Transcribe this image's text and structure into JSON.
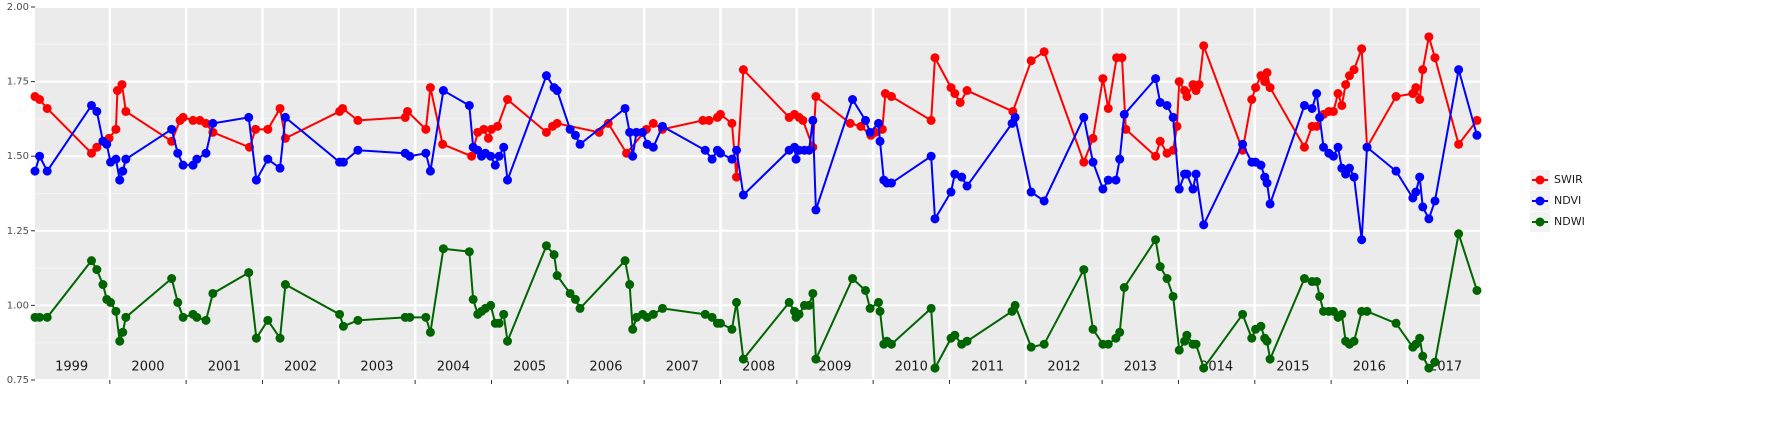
{
  "chart_data": {
    "type": "line",
    "series": [
      {
        "name": "SWIR",
        "color": "#ff0000",
        "x": [
          1999.02,
          1999.08,
          1999.18,
          1999.76,
          1999.83,
          1999.91,
          1999.99,
          2000.08,
          2000.1,
          2000.16,
          2000.21,
          2000.81,
          2000.92,
          2000.96,
          2001.09,
          2001.18,
          2001.26,
          2001.35,
          2001.83,
          2001.91,
          2002.07,
          2002.23,
          2002.3,
          2003.01,
          2003.05,
          2003.25,
          2003.87,
          2003.9,
          2004.14,
          2004.2,
          2004.36,
          2004.74,
          2004.82,
          2004.9,
          2004.96,
          2005.0,
          2005.08,
          2005.21,
          2005.72,
          2005.8,
          2005.86,
          2006.41,
          2006.53,
          2006.77,
          2007.03,
          2007.12,
          2007.24,
          2007.77,
          2007.85,
          2007.96,
          2008.0,
          2008.15,
          2008.21,
          2008.3,
          2008.9,
          2008.97,
          2009.03,
          2009.08,
          2009.21,
          2009.25,
          2009.7,
          2009.84,
          2009.97,
          2010.03,
          2010.12,
          2010.16,
          2010.24,
          2010.76,
          2010.81,
          2011.02,
          2011.07,
          2011.14,
          2011.23,
          2011.83,
          2012.07,
          2012.24,
          2012.76,
          2012.88,
          2013.01,
          2013.08,
          2013.19,
          2013.26,
          2013.31,
          2013.7,
          2013.76,
          2013.85,
          2013.93,
          2013.98,
          2014.01,
          2014.08,
          2014.11,
          2014.19,
          2014.23,
          2014.27,
          2014.33,
          2014.84,
          2014.96,
          2015.01,
          2015.08,
          2015.13,
          2015.16,
          2015.2,
          2015.65,
          2015.75,
          2015.81,
          2015.85,
          2015.9,
          2015.97,
          2016.03,
          2016.09,
          2016.14,
          2016.19,
          2016.24,
          2016.3,
          2016.4,
          2016.47,
          2016.85,
          2017.07,
          2017.11,
          2017.16,
          2017.2,
          2017.28,
          2017.36,
          2017.67,
          2017.91
        ],
        "values": [
          1.7,
          1.69,
          1.66,
          1.51,
          1.53,
          1.55,
          1.56,
          1.59,
          1.72,
          1.74,
          1.65,
          1.55,
          1.62,
          1.63,
          1.62,
          1.62,
          1.61,
          1.58,
          1.53,
          1.59,
          1.59,
          1.66,
          1.56,
          1.65,
          1.66,
          1.62,
          1.63,
          1.65,
          1.59,
          1.73,
          1.54,
          1.5,
          1.58,
          1.59,
          1.56,
          1.59,
          1.6,
          1.69,
          1.58,
          1.6,
          1.61,
          1.58,
          1.61,
          1.51,
          1.59,
          1.61,
          1.59,
          1.62,
          1.62,
          1.63,
          1.64,
          1.61,
          1.43,
          1.79,
          1.63,
          1.64,
          1.63,
          1.62,
          1.53,
          1.7,
          1.61,
          1.6,
          1.57,
          1.58,
          1.59,
          1.71,
          1.7,
          1.62,
          1.83,
          1.73,
          1.71,
          1.68,
          1.72,
          1.65,
          1.82,
          1.85,
          1.48,
          1.56,
          1.76,
          1.66,
          1.83,
          1.83,
          1.59,
          1.5,
          1.55,
          1.51,
          1.52,
          1.6,
          1.75,
          1.72,
          1.7,
          1.74,
          1.72,
          1.74,
          1.87,
          1.52,
          1.69,
          1.73,
          1.77,
          1.75,
          1.78,
          1.73,
          1.53,
          1.6,
          1.6,
          1.63,
          1.64,
          1.65,
          1.65,
          1.71,
          1.67,
          1.74,
          1.77,
          1.79,
          1.86,
          1.53,
          1.7,
          1.71,
          1.73,
          1.69,
          1.79,
          1.9,
          1.83,
          1.54,
          1.62
        ]
      },
      {
        "name": "NDVI",
        "color": "#0000ff",
        "x": [
          1999.02,
          1999.08,
          1999.18,
          1999.76,
          1999.83,
          1999.91,
          1999.96,
          2000.01,
          2000.08,
          2000.13,
          2000.17,
          2000.21,
          2000.81,
          2000.89,
          2000.96,
          2001.09,
          2001.14,
          2001.26,
          2001.35,
          2001.82,
          2001.92,
          2002.07,
          2002.23,
          2002.3,
          2003.01,
          2003.06,
          2003.25,
          2003.87,
          2003.93,
          2004.14,
          2004.2,
          2004.37,
          2004.71,
          2004.76,
          2004.82,
          2004.87,
          2004.92,
          2004.99,
          2005.05,
          2005.1,
          2005.16,
          2005.21,
          2005.72,
          2005.82,
          2005.86,
          2006.03,
          2006.1,
          2006.16,
          2006.75,
          2006.81,
          2006.85,
          2006.9,
          2006.98,
          2007.04,
          2007.12,
          2007.24,
          2007.8,
          2007.89,
          2007.96,
          2008.0,
          2008.15,
          2008.21,
          2008.3,
          2008.9,
          2008.97,
          2008.99,
          2009.03,
          2009.1,
          2009.16,
          2009.21,
          2009.25,
          2009.73,
          2009.9,
          2009.96,
          2010.07,
          2010.09,
          2010.14,
          2010.18,
          2010.24,
          2010.76,
          2010.81,
          2011.02,
          2011.07,
          2011.16,
          2011.23,
          2011.82,
          2011.86,
          2012.07,
          2012.24,
          2012.76,
          2012.88,
          2013.01,
          2013.08,
          2013.18,
          2013.23,
          2013.29,
          2013.7,
          2013.76,
          2013.85,
          2013.93,
          2014.01,
          2014.08,
          2014.11,
          2014.19,
          2014.23,
          2014.33,
          2014.84,
          2014.96,
          2015.01,
          2015.08,
          2015.13,
          2015.16,
          2015.2,
          2015.65,
          2015.75,
          2015.81,
          2015.85,
          2015.9,
          2015.97,
          2016.03,
          2016.09,
          2016.14,
          2016.19,
          2016.24,
          2016.3,
          2016.4,
          2016.47,
          2016.85,
          2017.07,
          2017.11,
          2017.16,
          2017.2,
          2017.28,
          2017.36,
          2017.67,
          2017.91
        ],
        "values": [
          1.45,
          1.5,
          1.45,
          1.67,
          1.65,
          1.55,
          1.54,
          1.48,
          1.49,
          1.42,
          1.45,
          1.49,
          1.59,
          1.51,
          1.47,
          1.47,
          1.49,
          1.51,
          1.61,
          1.63,
          1.42,
          1.49,
          1.46,
          1.63,
          1.48,
          1.48,
          1.52,
          1.51,
          1.5,
          1.51,
          1.45,
          1.72,
          1.67,
          1.53,
          1.52,
          1.5,
          1.51,
          1.5,
          1.47,
          1.5,
          1.53,
          1.42,
          1.77,
          1.73,
          1.72,
          1.59,
          1.57,
          1.54,
          1.66,
          1.58,
          1.5,
          1.58,
          1.58,
          1.54,
          1.53,
          1.6,
          1.52,
          1.49,
          1.52,
          1.51,
          1.49,
          1.52,
          1.37,
          1.52,
          1.53,
          1.49,
          1.52,
          1.52,
          1.52,
          1.62,
          1.32,
          1.69,
          1.62,
          1.58,
          1.61,
          1.55,
          1.42,
          1.41,
          1.41,
          1.5,
          1.29,
          1.38,
          1.44,
          1.43,
          1.4,
          1.61,
          1.63,
          1.38,
          1.35,
          1.63,
          1.48,
          1.39,
          1.42,
          1.42,
          1.49,
          1.64,
          1.76,
          1.68,
          1.67,
          1.63,
          1.39,
          1.44,
          1.44,
          1.39,
          1.44,
          1.27,
          1.54,
          1.48,
          1.48,
          1.47,
          1.43,
          1.41,
          1.34,
          1.67,
          1.66,
          1.71,
          1.63,
          1.53,
          1.51,
          1.5,
          1.53,
          1.46,
          1.44,
          1.46,
          1.43,
          1.22,
          1.53,
          1.45,
          1.36,
          1.38,
          1.43,
          1.33,
          1.29,
          1.35,
          1.79,
          1.57
        ]
      },
      {
        "name": "NDWI",
        "color": "#006400",
        "x": [
          1999.02,
          1999.08,
          1999.18,
          1999.76,
          1999.83,
          1999.91,
          1999.96,
          2000.01,
          2000.08,
          2000.13,
          2000.17,
          2000.21,
          2000.81,
          2000.89,
          2000.96,
          2001.09,
          2001.14,
          2001.26,
          2001.35,
          2001.82,
          2001.92,
          2002.07,
          2002.23,
          2002.3,
          2003.01,
          2003.06,
          2003.25,
          2003.87,
          2003.93,
          2004.14,
          2004.2,
          2004.37,
          2004.71,
          2004.76,
          2004.82,
          2004.87,
          2004.92,
          2004.99,
          2005.05,
          2005.1,
          2005.16,
          2005.21,
          2005.72,
          2005.82,
          2005.86,
          2006.03,
          2006.1,
          2006.16,
          2006.75,
          2006.81,
          2006.85,
          2006.9,
          2006.98,
          2007.04,
          2007.12,
          2007.24,
          2007.8,
          2007.89,
          2007.96,
          2008.0,
          2008.15,
          2008.21,
          2008.3,
          2008.9,
          2008.97,
          2008.99,
          2009.03,
          2009.1,
          2009.16,
          2009.21,
          2009.25,
          2009.73,
          2009.9,
          2009.96,
          2010.07,
          2010.09,
          2010.14,
          2010.18,
          2010.24,
          2010.76,
          2010.81,
          2011.02,
          2011.07,
          2011.16,
          2011.23,
          2011.82,
          2011.86,
          2012.07,
          2012.24,
          2012.76,
          2012.88,
          2013.01,
          2013.08,
          2013.18,
          2013.23,
          2013.29,
          2013.7,
          2013.76,
          2013.85,
          2013.93,
          2014.01,
          2014.08,
          2014.11,
          2014.19,
          2014.23,
          2014.33,
          2014.84,
          2014.96,
          2015.01,
          2015.08,
          2015.13,
          2015.16,
          2015.2,
          2015.65,
          2015.75,
          2015.81,
          2015.85,
          2015.9,
          2015.97,
          2016.03,
          2016.09,
          2016.14,
          2016.19,
          2016.24,
          2016.3,
          2016.4,
          2016.47,
          2016.85,
          2017.07,
          2017.11,
          2017.16,
          2017.2,
          2017.28,
          2017.36,
          2017.67,
          2017.91
        ],
        "values": [
          0.96,
          0.96,
          0.96,
          1.15,
          1.12,
          1.07,
          1.02,
          1.01,
          0.98,
          0.88,
          0.91,
          0.96,
          1.09,
          1.01,
          0.96,
          0.97,
          0.96,
          0.95,
          1.04,
          1.11,
          0.89,
          0.95,
          0.89,
          1.07,
          0.97,
          0.93,
          0.95,
          0.96,
          0.96,
          0.96,
          0.91,
          1.19,
          1.18,
          1.02,
          0.97,
          0.98,
          0.99,
          1.0,
          0.94,
          0.94,
          0.97,
          0.88,
          1.2,
          1.17,
          1.1,
          1.04,
          1.02,
          0.99,
          1.15,
          1.07,
          0.92,
          0.96,
          0.97,
          0.96,
          0.97,
          0.99,
          0.97,
          0.96,
          0.94,
          0.94,
          0.92,
          1.01,
          0.82,
          1.01,
          0.98,
          0.96,
          0.97,
          1.0,
          1.0,
          1.04,
          0.82,
          1.09,
          1.05,
          0.99,
          1.01,
          0.98,
          0.87,
          0.88,
          0.87,
          0.99,
          0.79,
          0.89,
          0.9,
          0.87,
          0.88,
          0.98,
          1.0,
          0.86,
          0.87,
          1.12,
          0.92,
          0.87,
          0.87,
          0.89,
          0.91,
          1.06,
          1.22,
          1.13,
          1.09,
          1.03,
          0.85,
          0.88,
          0.9,
          0.87,
          0.87,
          0.79,
          0.97,
          0.89,
          0.92,
          0.93,
          0.89,
          0.88,
          0.82,
          1.09,
          1.08,
          1.08,
          1.03,
          0.98,
          0.98,
          0.98,
          0.96,
          0.97,
          0.88,
          0.87,
          0.88,
          0.98,
          0.98,
          0.94,
          0.86,
          0.87,
          0.89,
          0.83,
          0.79,
          0.81,
          1.24,
          1.05
        ]
      }
    ],
    "xlim": [
      1999.02,
      2017.95
    ],
    "xticks": [
      {
        "value": 1999.5,
        "label": "1999"
      },
      {
        "value": 2000.5,
        "label": "2000"
      },
      {
        "value": 2001.5,
        "label": "2001"
      },
      {
        "value": 2002.5,
        "label": "2002"
      },
      {
        "value": 2003.5,
        "label": "2003"
      },
      {
        "value": 2004.5,
        "label": "2004"
      },
      {
        "value": 2005.5,
        "label": "2005"
      },
      {
        "value": 2006.5,
        "label": "2006"
      },
      {
        "value": 2007.5,
        "label": "2007"
      },
      {
        "value": 2008.5,
        "label": "2008"
      },
      {
        "value": 2009.5,
        "label": "2009"
      },
      {
        "value": 2010.5,
        "label": "2010"
      },
      {
        "value": 2011.5,
        "label": "2011"
      },
      {
        "value": 2012.5,
        "label": "2012"
      },
      {
        "value": 2013.5,
        "label": "2013"
      },
      {
        "value": 2014.5,
        "label": "2014"
      },
      {
        "value": 2015.5,
        "label": "2015"
      },
      {
        "value": 2016.5,
        "label": "2016"
      },
      {
        "value": 2017.5,
        "label": "2017"
      }
    ],
    "xgrid": [
      2000,
      2001,
      2002,
      2003,
      2004,
      2005,
      2006,
      2007,
      2008,
      2009,
      2010,
      2011,
      2012,
      2013,
      2014,
      2015,
      2016,
      2017
    ],
    "ylim": [
      0.75,
      2.0
    ],
    "yticks": [
      {
        "value": 0.75,
        "label": "0.75"
      },
      {
        "value": 1.0,
        "label": "1.00"
      },
      {
        "value": 1.25,
        "label": "1.25"
      },
      {
        "value": 1.5,
        "label": "1.50"
      },
      {
        "value": 1.75,
        "label": "1.75"
      },
      {
        "value": 2.0,
        "label": "2.00"
      }
    ],
    "grid": true,
    "legend": "right"
  }
}
